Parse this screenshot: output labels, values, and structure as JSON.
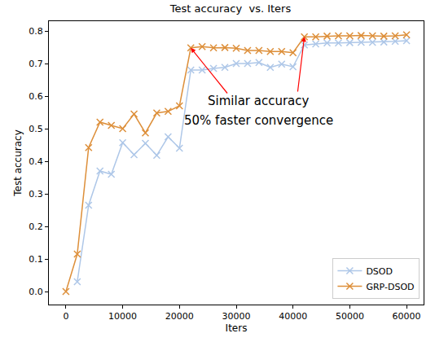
{
  "chart_data": {
    "type": "line",
    "title": "Test accuracy  vs. Iters",
    "x_label": "Iters",
    "y_label": "Test accuracy",
    "x": [
      0,
      2000,
      4000,
      6000,
      8000,
      10000,
      12000,
      14000,
      16000,
      18000,
      20000,
      22000,
      24000,
      26000,
      28000,
      30000,
      32000,
      34000,
      36000,
      38000,
      40000,
      42000,
      44000,
      46000,
      48000,
      50000,
      52000,
      54000,
      56000,
      58000,
      60000
    ],
    "series": [
      {
        "name": "DSOD",
        "color": "#aec7e8",
        "marker": "x",
        "line_style": "solid",
        "values": [
          null,
          0.03,
          0.265,
          0.37,
          0.36,
          0.457,
          0.42,
          0.455,
          0.418,
          0.475,
          0.44,
          0.68,
          0.68,
          0.685,
          0.688,
          0.7,
          0.7,
          0.703,
          0.688,
          0.698,
          0.69,
          0.757,
          0.76,
          0.763,
          0.763,
          0.764,
          0.765,
          0.765,
          0.766,
          0.768,
          0.77
        ]
      },
      {
        "name": "GRP-DSOD",
        "color": "#dd8f3a",
        "marker": "x",
        "line_style": "solid",
        "values": [
          0.0,
          0.115,
          0.442,
          0.52,
          0.51,
          0.5,
          0.545,
          0.487,
          0.548,
          0.553,
          0.57,
          0.748,
          0.752,
          0.748,
          0.749,
          0.747,
          0.74,
          0.74,
          0.737,
          0.737,
          0.733,
          0.782,
          0.782,
          0.784,
          0.785,
          0.785,
          0.786,
          0.785,
          0.784,
          0.785,
          0.788
        ]
      }
    ],
    "xlim": [
      -3000,
      63000
    ],
    "xticks": [
      0,
      10000,
      20000,
      30000,
      40000,
      50000,
      60000
    ],
    "ylim": [
      -0.04,
      0.83
    ],
    "yticks": [
      {
        "value": 0,
        "label": "0.0"
      },
      {
        "value": 0.1,
        "label": "0.1"
      },
      {
        "value": 0.2,
        "label": "0.2"
      },
      {
        "value": 0.3,
        "label": "0.3"
      },
      {
        "value": 0.4,
        "label": "0.4"
      },
      {
        "value": 0.5,
        "label": "0.5"
      },
      {
        "value": 0.6,
        "label": "0.6"
      },
      {
        "value": 0.7,
        "label": "0.7"
      },
      {
        "value": 0.8,
        "label": "0.8"
      }
    ],
    "annotations": [
      {
        "text": "Similar accuracy",
        "color": "#ff0000",
        "arrows_to": [
          [
            22000,
            0.748
          ],
          [
            42000,
            0.782
          ]
        ]
      },
      {
        "text": "50% faster convergence"
      }
    ],
    "grid": false,
    "legend": "lower right"
  }
}
